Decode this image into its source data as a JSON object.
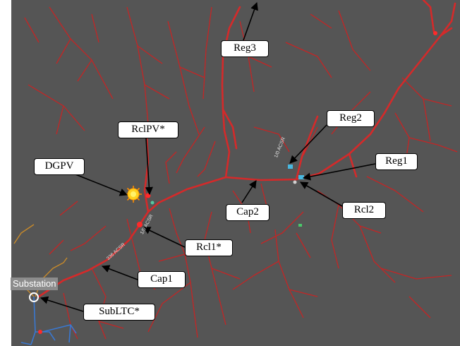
{
  "labels": {
    "reg3": "Reg3",
    "reg2": "Reg2",
    "reg1": "Reg1",
    "rclpv": "RclPV*",
    "dgpv": "DGPV",
    "cap2": "Cap2",
    "rcl2": "Rcl2",
    "rcl1": "Rcl1*",
    "cap1": "Cap1",
    "substation": "Substation",
    "subltc": "SubLTC*"
  },
  "conductors": {
    "c1": "1/0 ACSR",
    "c2": "1/0 ACSR",
    "c3": "336 ACSR"
  },
  "colors": {
    "background": "#555555",
    "feeder": "#d42a2a",
    "subtransmission": "#c88a2a",
    "secondary": "#3a78d0",
    "pv_sun": "#ffd21e"
  }
}
